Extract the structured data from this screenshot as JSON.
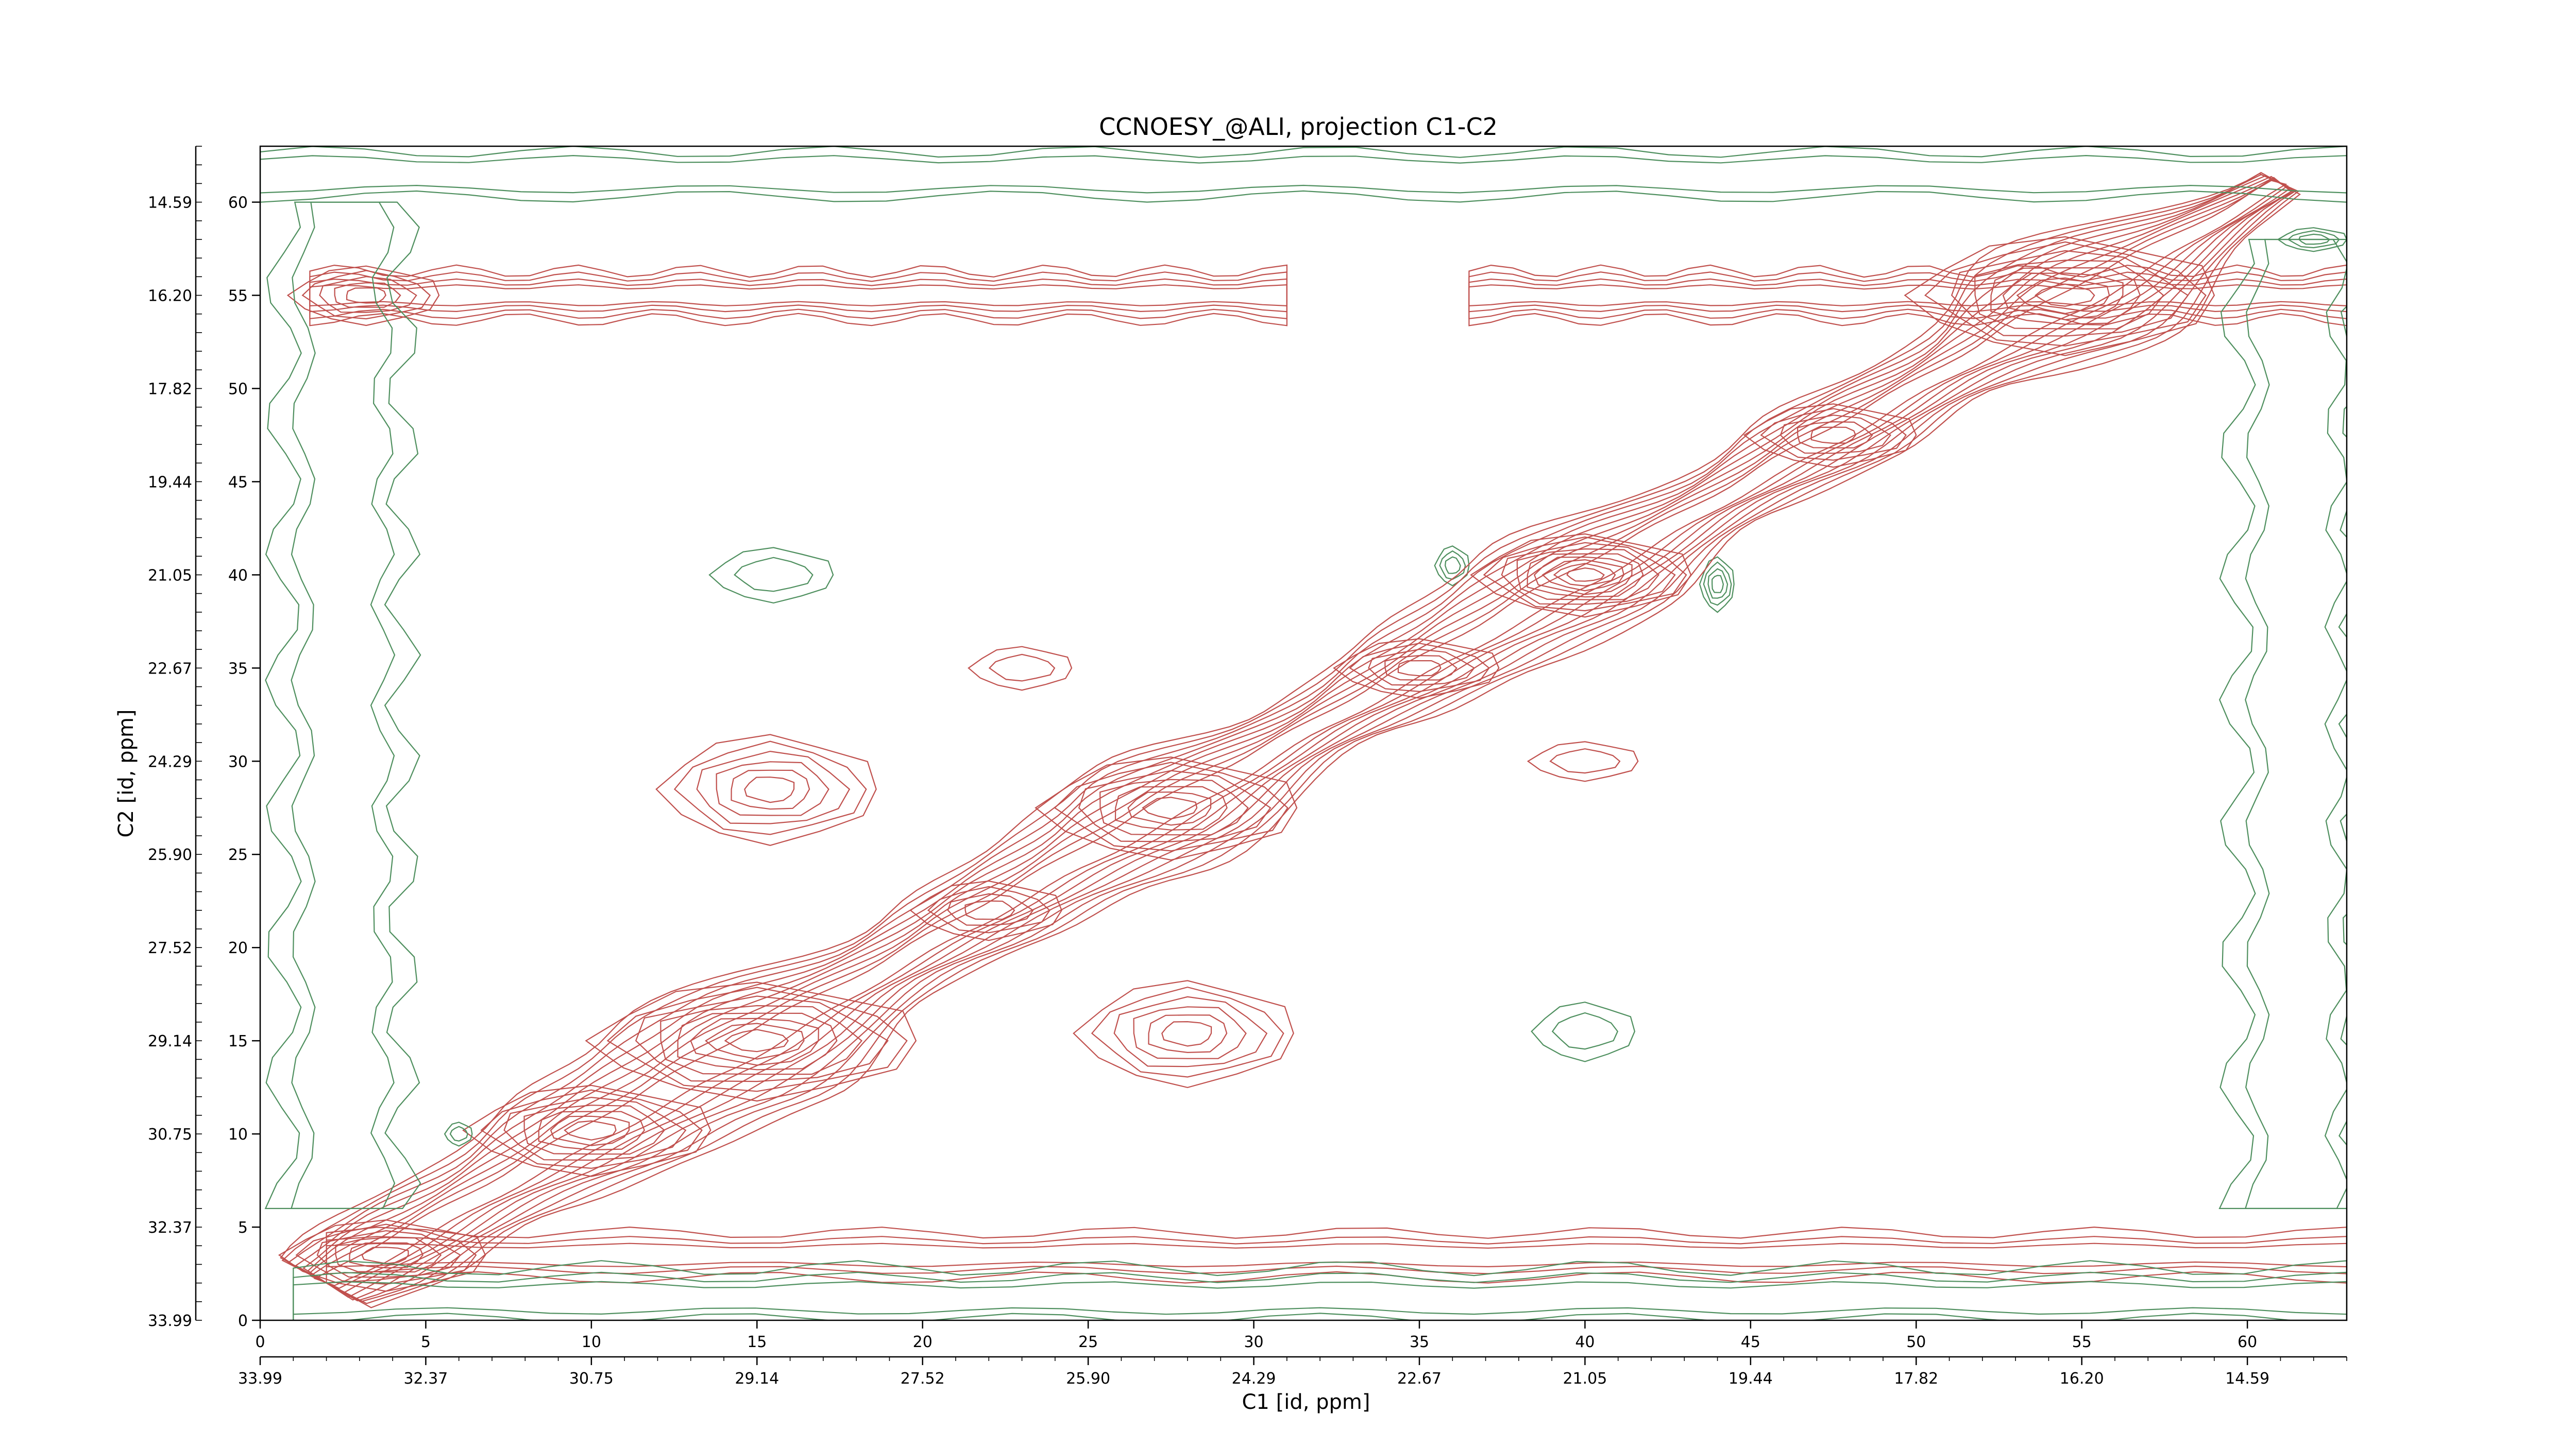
{
  "chart_data": {
    "type": "contour",
    "title": "CCNOESY_@ALI, projection C1-C2",
    "xlabel": "C1 [id, ppm]",
    "ylabel": "C2 [id, ppm]",
    "xlim": [
      0,
      63
    ],
    "ylim": [
      0,
      63
    ],
    "x_ticks": [
      0,
      5,
      10,
      15,
      20,
      25,
      30,
      35,
      40,
      45,
      50,
      55,
      60
    ],
    "y_ticks": [
      0,
      5,
      10,
      15,
      20,
      25,
      30,
      35,
      40,
      45,
      50,
      55,
      60
    ],
    "ppm_ticks_bottom": [
      "33.99",
      "32.37",
      "30.75",
      "29.14",
      "27.52",
      "25.90",
      "24.29",
      "22.67",
      "21.05",
      "19.44",
      "17.82",
      "16.20",
      "14.59"
    ],
    "ppm_ticks_left": [
      "33.99",
      "32.37",
      "30.75",
      "29.14",
      "27.52",
      "25.90",
      "24.29",
      "22.67",
      "21.05",
      "19.44",
      "17.82",
      "16.20",
      "14.59"
    ],
    "colors": {
      "positive": "#c0504d",
      "negative": "#4e8f5e"
    },
    "positive_peaks": [
      {
        "x": 3.2,
        "y": 55,
        "rx": 2.2,
        "ry": 1.5,
        "levels": 5
      },
      {
        "x": 3.8,
        "y": 3.5,
        "rx": 3.0,
        "ry": 1.8,
        "levels": 6
      },
      {
        "x": 10.0,
        "y": 10.2,
        "rx": 3.6,
        "ry": 2.3,
        "levels": 7
      },
      {
        "x": 15.0,
        "y": 15.0,
        "rx": 4.8,
        "ry": 3.0,
        "levels": 8
      },
      {
        "x": 15.4,
        "y": 28.5,
        "rx": 3.2,
        "ry": 2.8,
        "levels": 6
      },
      {
        "x": 28.0,
        "y": 15.4,
        "rx": 3.2,
        "ry": 2.7,
        "levels": 6
      },
      {
        "x": 27.5,
        "y": 27.5,
        "rx": 3.8,
        "ry": 2.6,
        "levels": 7
      },
      {
        "x": 40.0,
        "y": 40.0,
        "rx": 3.2,
        "ry": 2.1,
        "levels": 9
      },
      {
        "x": 54.5,
        "y": 55.0,
        "rx": 4.5,
        "ry": 3.0,
        "levels": 8
      },
      {
        "x": 47.5,
        "y": 47.5,
        "rx": 2.5,
        "ry": 1.6,
        "levels": 5
      },
      {
        "x": 35.0,
        "y": 35.0,
        "rx": 2.4,
        "ry": 1.5,
        "levels": 5
      },
      {
        "x": 22.0,
        "y": 22.0,
        "rx": 2.2,
        "ry": 1.5,
        "levels": 4
      },
      {
        "x": 40.0,
        "y": 30.0,
        "rx": 1.6,
        "ry": 1.0,
        "levels": 2
      },
      {
        "x": 23.0,
        "y": 35.0,
        "rx": 1.5,
        "ry": 1.1,
        "levels": 2
      }
    ],
    "negative_peaks": [
      {
        "x": 15.5,
        "y": 40.0,
        "rx": 1.8,
        "ry": 1.4,
        "levels": 2
      },
      {
        "x": 40.0,
        "y": 15.5,
        "rx": 1.5,
        "ry": 1.5,
        "levels": 2
      },
      {
        "x": 44.0,
        "y": 39.5,
        "rx": 0.5,
        "ry": 1.4,
        "levels": 4
      },
      {
        "x": 36.0,
        "y": 40.5,
        "rx": 0.5,
        "ry": 1.0,
        "levels": 3
      },
      {
        "x": 62.0,
        "y": 58.0,
        "rx": 1.0,
        "ry": 0.6,
        "levels": 3
      },
      {
        "x": 6.0,
        "y": 10.0,
        "rx": 0.4,
        "ry": 0.6,
        "levels": 2
      }
    ]
  }
}
